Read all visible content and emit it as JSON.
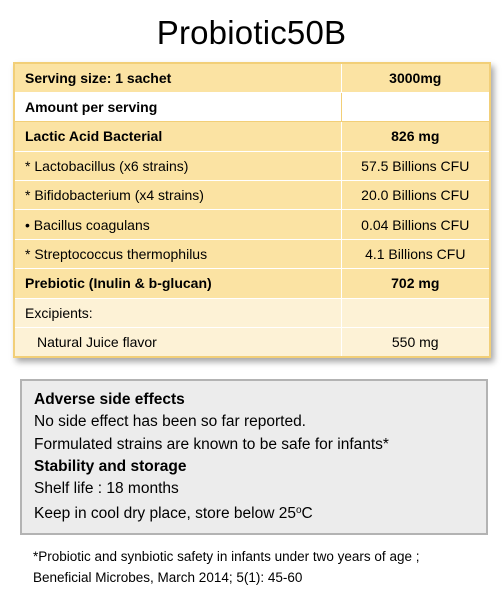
{
  "title": "Probiotic50B",
  "facts_table": {
    "rows": [
      {
        "label": "Serving size: 1 sachet",
        "value": "3000mg"
      },
      {
        "label": "Amount per serving",
        "value": ""
      },
      {
        "label": "Lactic Acid Bacterial",
        "value": "826 mg"
      },
      {
        "label": "* Lactobacillus (x6 strains)",
        "value": "57.5 Billions CFU"
      },
      {
        "label": "* Bifidobacterium (x4 strains)",
        "value": "20.0 Billions CFU"
      },
      {
        "label": "•  Bacillus coagulans",
        "value": "0.04 Billions CFU"
      },
      {
        "label": "* Streptococcus thermophilus",
        "value": "4.1 Billions CFU"
      },
      {
        "label": "Prebiotic (Inulin & b-glucan)",
        "value": "702 mg"
      },
      {
        "label": "Excipients:",
        "value": ""
      },
      {
        "label": "Natural Juice flavor",
        "value": "550 mg"
      }
    ]
  },
  "info_box": {
    "adverse_heading": "Adverse side effects",
    "adverse_line1": "No side effect has been so far reported.",
    "adverse_line2": "Formulated strains are known to be safe for infants*",
    "stability_heading": "Stability and storage",
    "shelf_life": "Shelf life : 18 months",
    "storage_text": "Keep in cool dry place, store below 25",
    "storage_deg": "o",
    "storage_unit": "C"
  },
  "footnote": "*Probiotic and synbiotic safety in infants under two years of age ; Beneficial Microbes, March 2014; 5(1): 45-60",
  "colors": {
    "header_row": "#fbe3a3",
    "light_row": "#fdf2d6",
    "table_border": "#f2cf78",
    "box_background": "#ececec",
    "box_border": "#b3b3b3"
  }
}
